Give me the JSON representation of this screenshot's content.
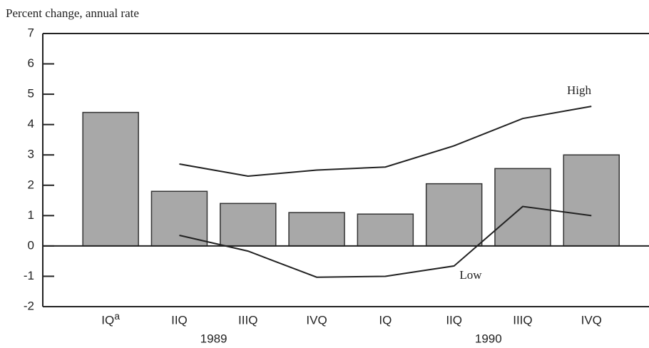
{
  "chart_data": {
    "type": "bar",
    "y_axis_label": "Percent change, annual rate",
    "categories": [
      "IQ",
      "IIQ",
      "IIIQ",
      "IVQ",
      "IQ",
      "IIQ",
      "IIIQ",
      "IVQ"
    ],
    "first_category_footnote": "a",
    "groups": [
      "1989",
      "1990"
    ],
    "values": [
      4.4,
      1.8,
      1.4,
      1.1,
      1.05,
      2.05,
      2.55,
      3.0
    ],
    "color": "#a8a8a8",
    "lines": [
      {
        "name": "High",
        "color": "#222222",
        "values": [
          null,
          2.7,
          2.3,
          2.5,
          2.6,
          3.3,
          4.2,
          4.6
        ]
      },
      {
        "name": "Low",
        "color": "#222222",
        "values": [
          null,
          0.35,
          -0.17,
          -1.03,
          -1.0,
          -0.66,
          1.3,
          1.0
        ]
      }
    ],
    "ylim": [
      -2,
      7
    ],
    "yticks": [
      -2,
      -1,
      0,
      1,
      2,
      3,
      4,
      5,
      6,
      7
    ]
  }
}
